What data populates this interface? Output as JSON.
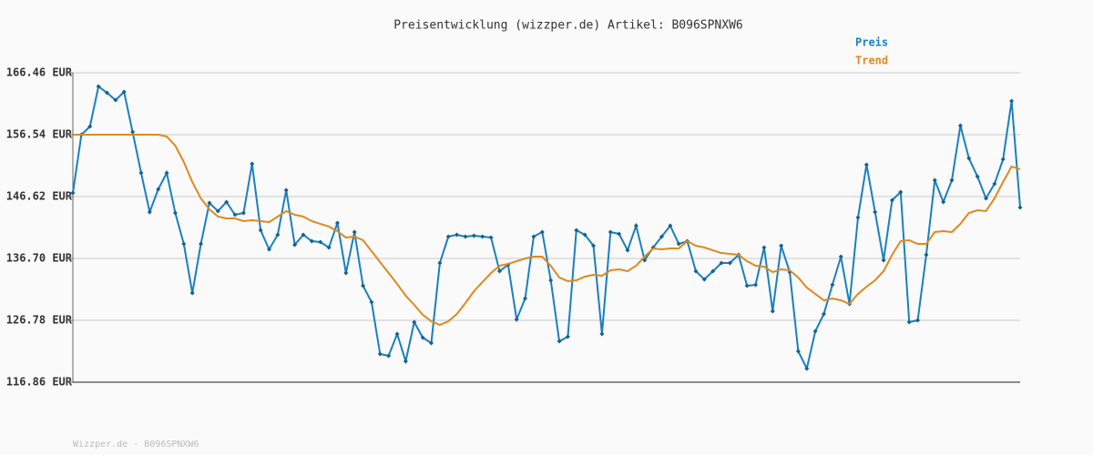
{
  "chart_data": {
    "type": "line",
    "title": "Preisentwicklung (wizzper.de) Artikel: B096SPNXW6",
    "footer": "Wizzper.de - B096SPNXW6",
    "ylim": [
      116.86,
      166.46
    ],
    "yticks": [
      {
        "value": 116.86,
        "label": "116.86 EUR"
      },
      {
        "value": 126.78,
        "label": "126.78 EUR"
      },
      {
        "value": 136.7,
        "label": "136.70 EUR"
      },
      {
        "value": 146.62,
        "label": "146.62 EUR"
      },
      {
        "value": 156.54,
        "label": "156.54 EUR"
      },
      {
        "value": 166.46,
        "label": "166.46 EUR"
      }
    ],
    "grid": true,
    "legend": "top-right",
    "series": [
      {
        "name": "Preis",
        "color": "#1a80c0",
        "markers": true,
        "values": [
          147.2,
          156.54,
          157.85,
          164.27,
          163.25,
          162.08,
          163.4,
          156.98,
          150.41,
          144.14,
          147.79,
          150.41,
          143.99,
          139.03,
          131.16,
          139.03,
          145.6,
          144.29,
          145.74,
          143.7,
          143.99,
          151.87,
          141.22,
          138.16,
          140.49,
          147.64,
          138.89,
          140.49,
          139.47,
          139.33,
          138.45,
          142.39,
          134.37,
          140.93,
          132.32,
          129.7,
          121.38,
          121.09,
          124.59,
          120.22,
          126.49,
          124.01,
          123.13,
          135.97,
          140.2,
          140.49,
          140.2,
          140.35,
          140.2,
          140.05,
          134.66,
          135.68,
          126.93,
          130.28,
          140.2,
          140.93,
          133.2,
          123.42,
          124.15,
          141.22,
          140.49,
          138.74,
          124.59,
          140.93,
          140.64,
          138.01,
          141.95,
          136.41,
          138.45,
          140.2,
          141.95,
          139.03,
          139.47,
          134.66,
          133.34,
          134.66,
          135.97,
          135.97,
          137.28,
          132.32,
          132.47,
          138.45,
          128.24,
          138.74,
          134.51,
          121.82,
          119.05,
          125.03,
          127.8,
          132.47,
          136.99,
          129.41,
          143.26,
          151.73,
          144.14,
          136.41,
          146.04,
          147.35,
          126.49,
          126.78,
          137.28,
          149.25,
          145.74,
          149.25,
          158.0,
          152.75,
          149.83,
          146.33,
          148.66,
          152.6,
          161.94,
          144.87
        ]
      },
      {
        "name": "Trend",
        "color": "#e0891e",
        "markers": false,
        "values": [
          156.54,
          156.54,
          156.54,
          156.54,
          156.54,
          156.54,
          156.54,
          156.54,
          156.54,
          156.54,
          156.54,
          156.25,
          154.79,
          152.16,
          148.95,
          146.33,
          144.58,
          143.41,
          143.12,
          143.12,
          142.68,
          142.83,
          142.68,
          142.53,
          143.41,
          144.29,
          143.7,
          143.41,
          142.68,
          142.24,
          141.81,
          141.08,
          140.05,
          140.2,
          139.62,
          137.87,
          136.12,
          134.37,
          132.62,
          130.72,
          129.26,
          127.66,
          126.63,
          126.05,
          126.63,
          127.8,
          129.55,
          131.45,
          132.91,
          134.37,
          135.53,
          135.82,
          136.26,
          136.7,
          136.99,
          136.99,
          135.53,
          133.64,
          133.05,
          133.2,
          133.78,
          134.07,
          133.93,
          134.8,
          134.95,
          134.66,
          135.53,
          136.99,
          138.3,
          138.16,
          138.3,
          138.3,
          139.47,
          138.74,
          138.45,
          138.01,
          137.57,
          137.43,
          137.28,
          136.26,
          135.53,
          135.39,
          134.51,
          134.95,
          134.8,
          133.64,
          132.03,
          131.01,
          129.99,
          130.28,
          129.99,
          129.41,
          131.01,
          132.18,
          133.2,
          134.66,
          137.28,
          139.47,
          139.62,
          139.03,
          139.03,
          140.93,
          141.08,
          140.93,
          142.24,
          143.99,
          144.43,
          144.29,
          146.33,
          148.95,
          151.43,
          151.0
        ]
      }
    ]
  }
}
